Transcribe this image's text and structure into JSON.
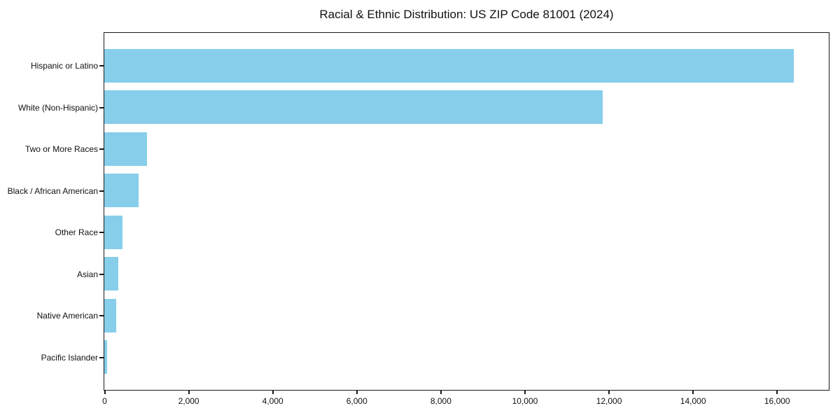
{
  "title": "Racial & Ethnic Distribution: US ZIP Code 81001 (2024)",
  "colors": {
    "bar": "#87CEEB",
    "frame": "#1a1a1a",
    "background": "#ffffff",
    "text": "#111111"
  },
  "chart_data": {
    "type": "bar",
    "orientation": "horizontal",
    "title": "Racial & Ethnic Distribution: US ZIP Code 81001 (2024)",
    "categories": [
      "Hispanic or Latino",
      "White (Non-Hispanic)",
      "Two or More Races",
      "Black / African American",
      "Other Race",
      "Asian",
      "Native American",
      "Pacific Islander"
    ],
    "values": [
      16400,
      11860,
      1020,
      810,
      435,
      330,
      285,
      60
    ],
    "xlabel": "",
    "ylabel": "",
    "xlim": [
      0,
      17220
    ],
    "x_ticks": [
      0,
      2000,
      4000,
      6000,
      8000,
      10000,
      12000,
      14000,
      16000
    ],
    "x_tick_labels": [
      "0",
      "2,000",
      "4,000",
      "6,000",
      "8,000",
      "10,000",
      "12,000",
      "14,000",
      "16,000"
    ],
    "grid": false,
    "legend": "none",
    "bar_color": "#87CEEB"
  }
}
